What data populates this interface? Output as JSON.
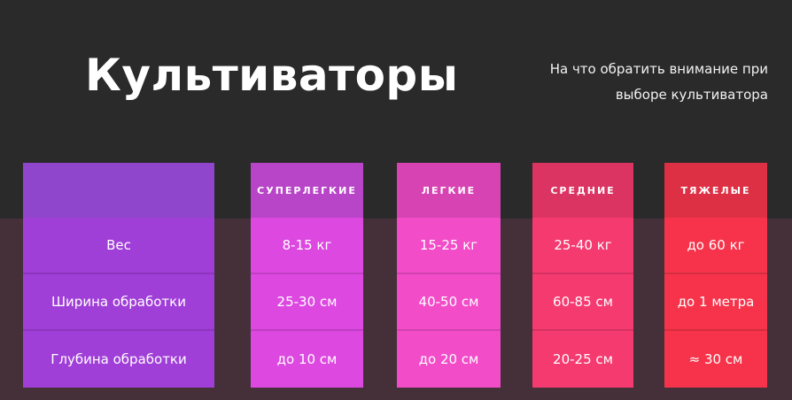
{
  "title": "Культиваторы",
  "subtitle": {
    "line1": "На что обратить внимание при",
    "line2": "выборе культиватора"
  },
  "params": {
    "weight": "Вес",
    "width": "Ширина обработки",
    "depth": "Глубина обработки"
  },
  "columns": [
    {
      "name": "СУПЕРЛЕГКИЕ",
      "weight": "8-15 кг",
      "width": "25-30 см",
      "depth": "до 10 см"
    },
    {
      "name": "ЛЕГКИЕ",
      "weight": "15-25 кг",
      "width": "40-50 см",
      "depth": "до 20 см"
    },
    {
      "name": "СРЕДНИЕ",
      "weight": "25-40 кг",
      "width": "60-85 см",
      "depth": "20-25 см"
    },
    {
      "name": "ТЯЖЕЛЫЕ",
      "weight": "до 60 кг",
      "width": "до 1 метра",
      "depth": "≈ 30 см"
    }
  ],
  "colors": {
    "background": "#2a2a2a",
    "params_column": "#a03ed8",
    "superlight": "#dc48e0",
    "light": "#f24cc8",
    "medium": "#f53a70",
    "heavy": "#f6334a"
  }
}
